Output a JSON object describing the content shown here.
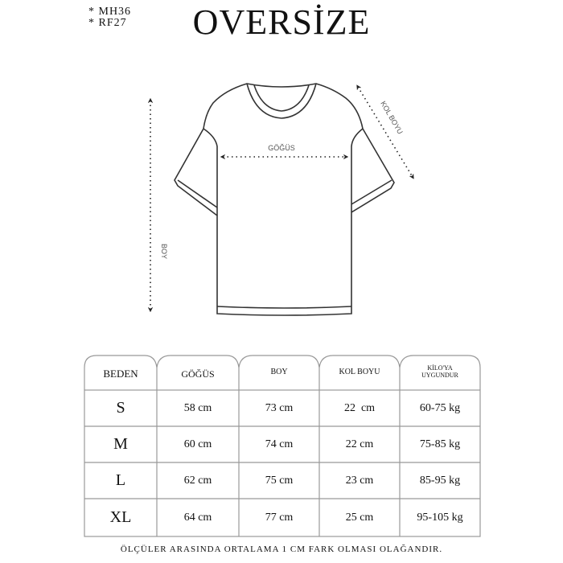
{
  "codes": [
    "* MH36",
    "* RF27"
  ],
  "title": "OVERSİZE",
  "diagram": {
    "chest_label": "GÖĞÜS",
    "sleeve_label": "KOL BOYU",
    "length_label": "BOY"
  },
  "table": {
    "headers": [
      "BEDEN",
      "GÖĞÜS",
      "BOY",
      "KOL BOYU",
      "KİLO'YA",
      "UYGUNDUR"
    ],
    "rows": [
      [
        "S",
        "58 cm",
        "73 cm",
        "22  cm",
        "60-75 kg"
      ],
      [
        "M",
        "60 cm",
        "74 cm",
        "22 cm",
        "75-85 kg"
      ],
      [
        "L",
        "62 cm",
        "75 cm",
        "23 cm",
        "85-95 kg"
      ],
      [
        "XL",
        "64 cm",
        "77 cm",
        "25 cm",
        "95-105 kg"
      ]
    ]
  },
  "footer": "ÖLÇÜLER ARASINDA ORTALAMA 1 CM FARK OLMASI OLAĞANDIR."
}
